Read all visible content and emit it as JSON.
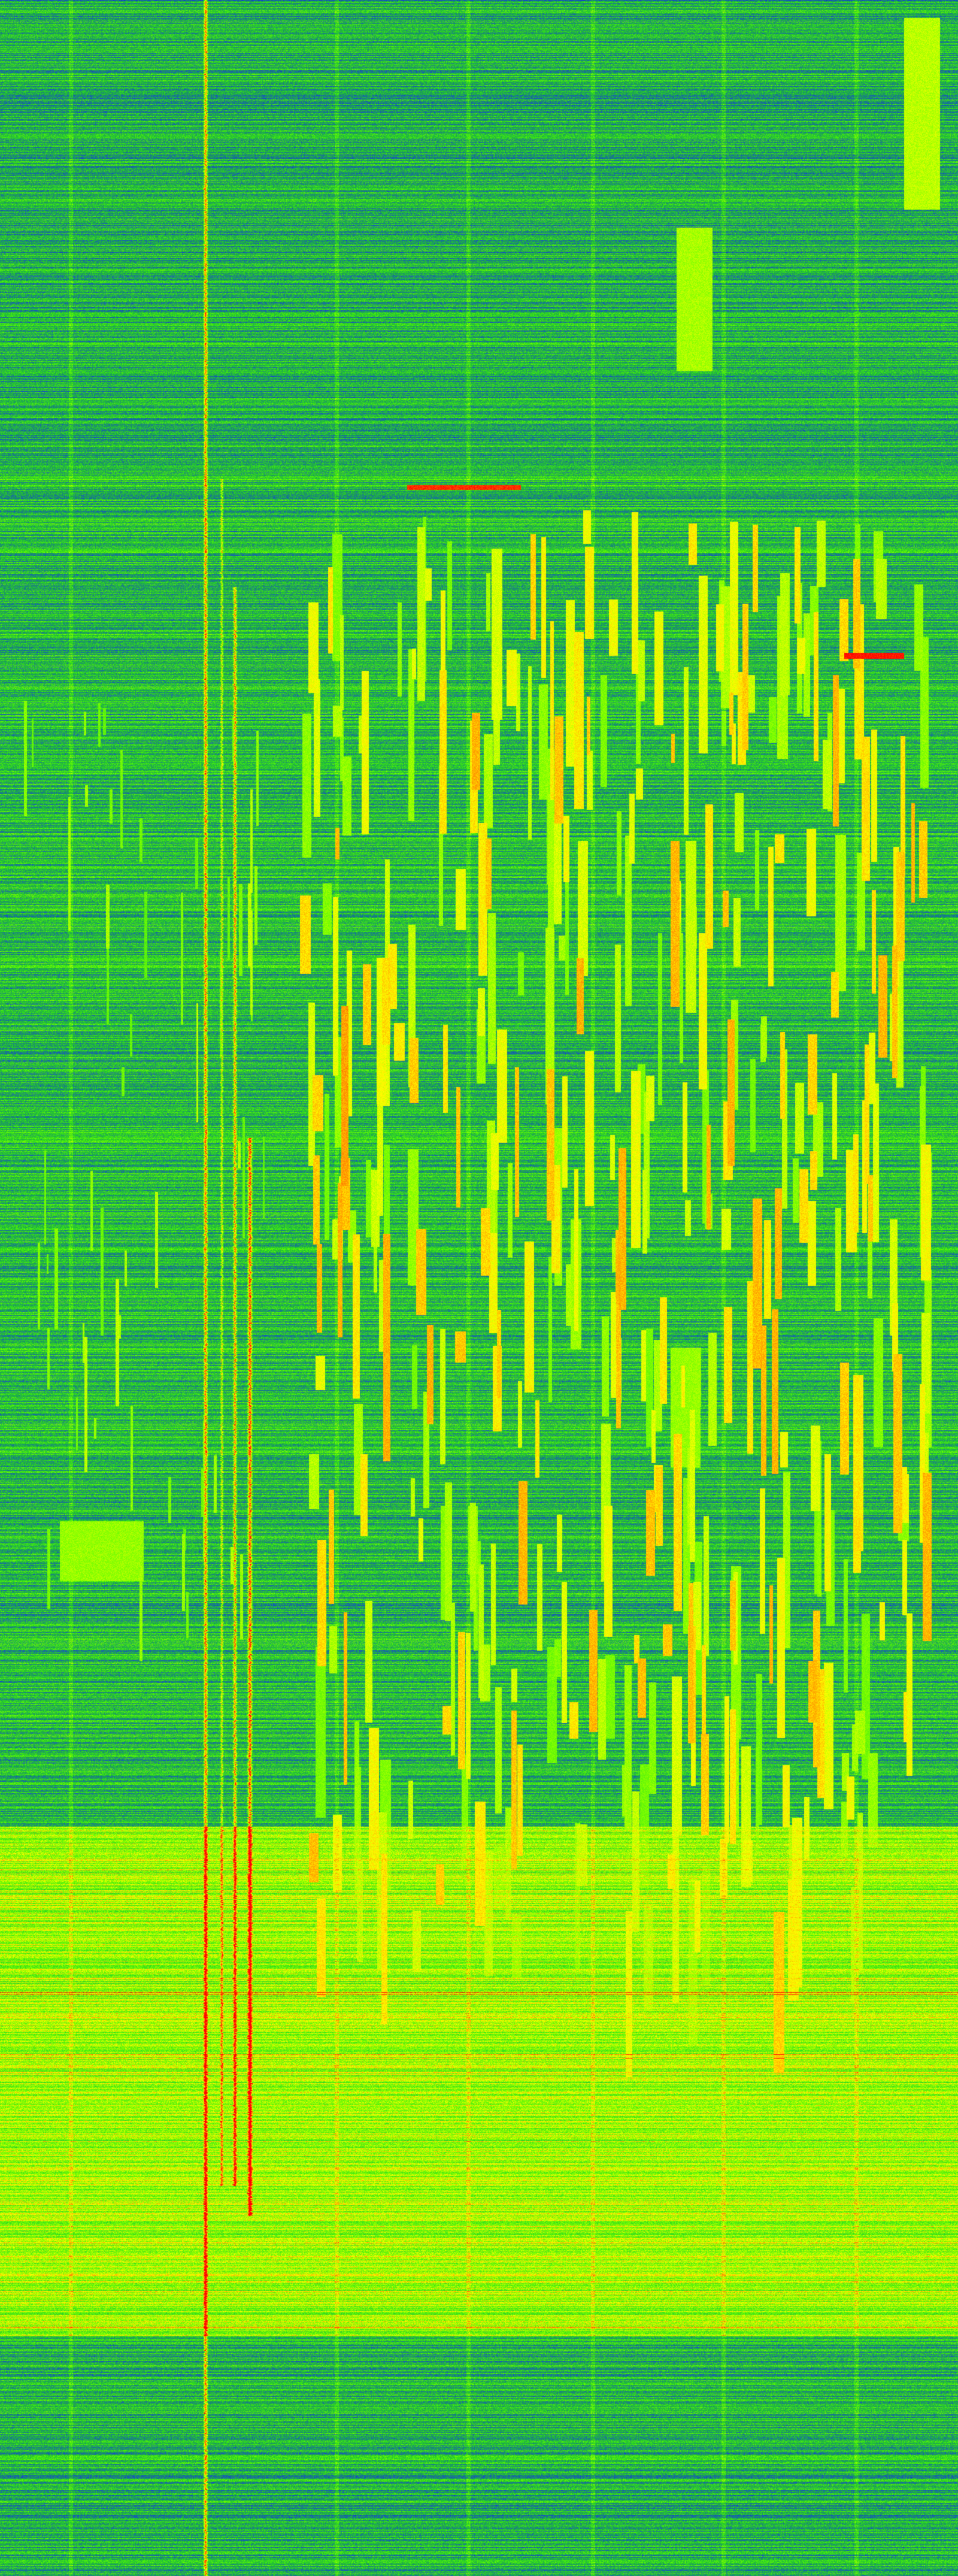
{
  "spectrogram": {
    "colormap": [
      "#0a1aa8",
      "#1446d8",
      "#1a9a5a",
      "#2ee01a",
      "#7cff00",
      "#ffff00",
      "#ff8000",
      "#ff0000"
    ]
  }
}
